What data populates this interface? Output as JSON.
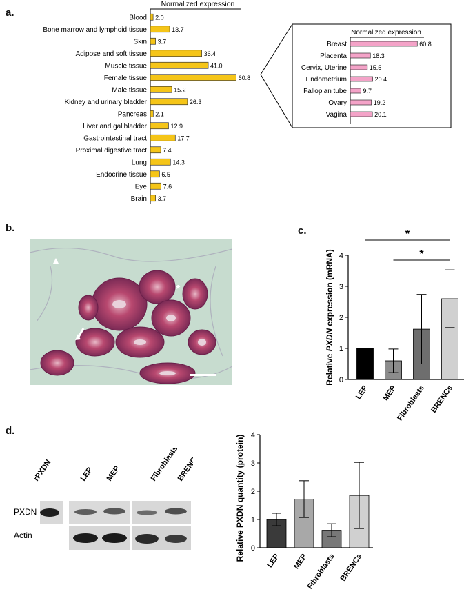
{
  "panels": {
    "a": "a.",
    "b": "b.",
    "c": "c.",
    "d": "d."
  },
  "chart_data": [
    {
      "type": "bar",
      "orientation": "horizontal",
      "panel": "a",
      "title": "Normalized expression",
      "categories": [
        "Blood",
        "Bone marrow and lymphoid tissue",
        "Skin",
        "Adipose and soft tissue",
        "Muscle tissue",
        "Female tissue",
        "Male tissue",
        "Kidney and urinary bladder",
        "Pancreas",
        "Liver and gallbladder",
        "Gastrointestinal tract",
        "Proximal digestive tract",
        "Lung",
        "Endocrine tissue",
        "Eye",
        "Brain"
      ],
      "values": [
        2.0,
        13.7,
        3.7,
        36.4,
        41.0,
        60.8,
        15.2,
        26.3,
        2.1,
        12.9,
        17.7,
        7.4,
        14.3,
        6.5,
        7.6,
        3.7
      ],
      "value_labels": [
        "2.0",
        "13.7",
        "3.7",
        "36.4",
        "41.0",
        "60.8",
        "15.2",
        "26.3",
        "2.1",
        "12.9",
        "17.7",
        "7.4",
        "14.3",
        "6.5",
        "7.6",
        "3.7"
      ],
      "xlim": [
        0,
        60.8
      ],
      "color": "#f5c518"
    },
    {
      "type": "bar",
      "orientation": "horizontal",
      "panel": "a-inset",
      "title": "Normalized expression",
      "categories": [
        "Breast",
        "Placenta",
        "Cervix, Uterine",
        "Endometrium",
        "Fallopian tube",
        "Ovary",
        "Vagina"
      ],
      "values": [
        60.8,
        18.3,
        15.5,
        20.4,
        9.7,
        19.2,
        20.1
      ],
      "value_labels": [
        "60.8",
        "18.3",
        "15.5",
        "20.4",
        "9.7",
        "19.2",
        "20.1"
      ],
      "xlim": [
        0,
        60.8
      ],
      "color": "#f4a3c8"
    },
    {
      "type": "bar",
      "panel": "c",
      "ylabel_prefix": "Relative ",
      "ylabel_gene": "PXDN",
      "ylabel_suffix": " expression (mRNA)",
      "categories": [
        "LEP",
        "MEP",
        "Fibroblasts",
        "BRENCs"
      ],
      "values": [
        1.0,
        0.6,
        1.62,
        2.6
      ],
      "errors": [
        0,
        0.38,
        1.12,
        0.93
      ],
      "colors": [
        "#000000",
        "#8c8c8c",
        "#6e6e6e",
        "#d0d0d0"
      ],
      "ylim": [
        0,
        4
      ],
      "yticks": [
        "0",
        "1",
        "2",
        "3",
        "4"
      ],
      "significance": [
        {
          "from": "LEP",
          "to": "BRENCs",
          "label": "*"
        },
        {
          "from": "MEP",
          "to": "BRENCs",
          "label": "*"
        }
      ]
    },
    {
      "type": "bar",
      "panel": "d",
      "ylabel": "Relative PXDN quantity (protein)",
      "categories": [
        "LEP",
        "MEP",
        "Fibroblasts",
        "BRENCs"
      ],
      "values": [
        1.0,
        1.72,
        0.62,
        1.85
      ],
      "errors": [
        0.22,
        0.65,
        0.23,
        1.17
      ],
      "colors": [
        "#3a3a3a",
        "#a8a8a8",
        "#787878",
        "#d0d0d0"
      ],
      "ylim": [
        0,
        4
      ],
      "yticks": [
        "0",
        "1",
        "2",
        "3",
        "4"
      ]
    }
  ],
  "blot": {
    "lanes": [
      "rPXDN",
      "LEP",
      "MEP",
      "Fibroblasts",
      "BRENCs"
    ],
    "rows": [
      "PXDN",
      "Actin"
    ]
  }
}
